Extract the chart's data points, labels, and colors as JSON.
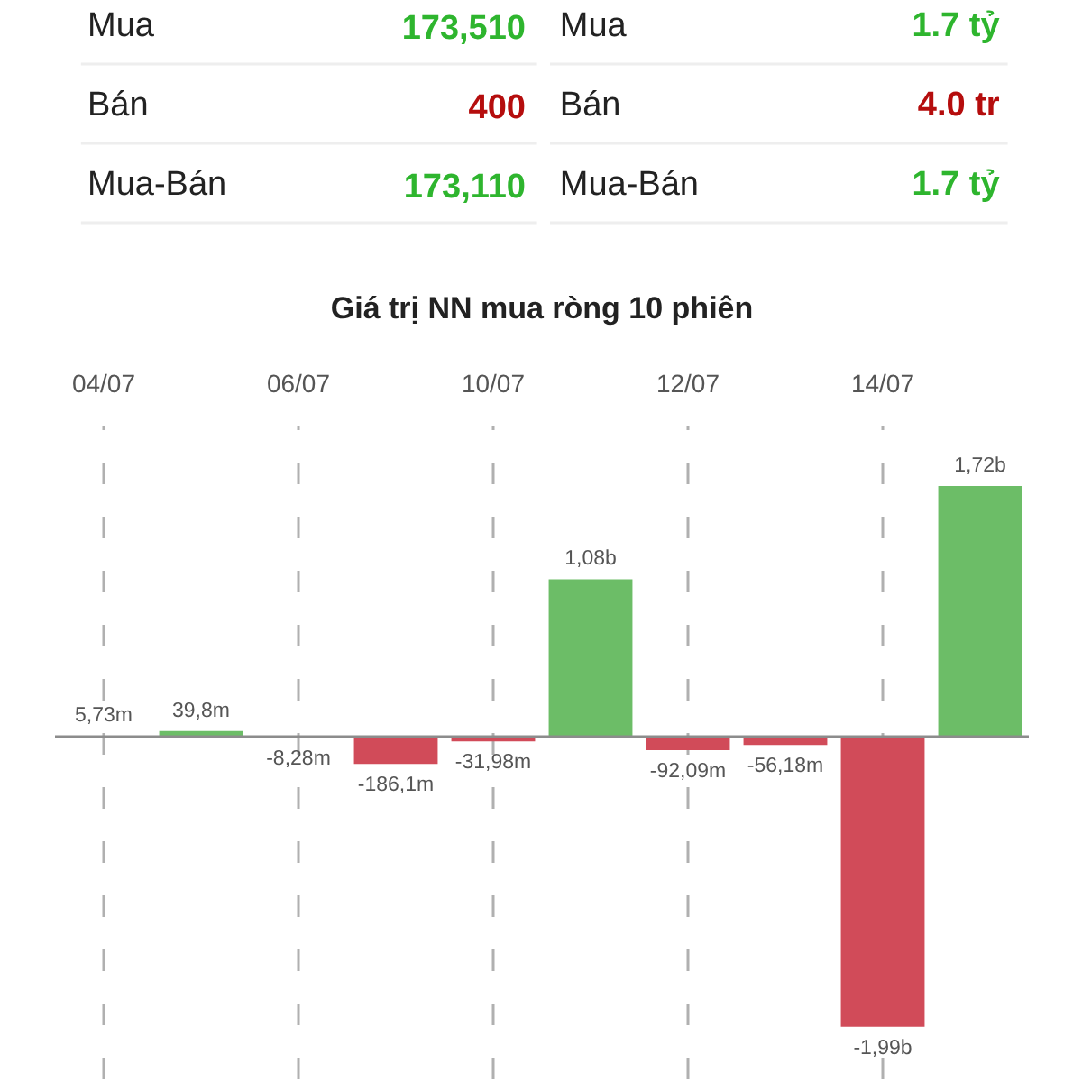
{
  "chart_data": [
    {
      "type": "other",
      "annotations": [
        "Mua",
        "173,510",
        "Mua",
        "1.7 tỷ",
        "Bán",
        "400",
        "Bán",
        "4.0 tr",
        "Mua-Bán",
        "173,110",
        "Mua-Bán",
        "1.7 tỷ"
      ],
      "colors": [
        "#222222",
        "#2eb52e",
        "#222222",
        "#2eb52e",
        "#222222",
        "#b50d0d",
        "#222222",
        "#b50d0d",
        "#222222",
        "#2eb52e",
        "#222222",
        "#2eb52e"
      ]
    },
    {
      "type": "bar",
      "title": "Giá trị NN mua ròng 10 phiên",
      "categories": [
        "04/07",
        null,
        "06/07",
        null,
        "10/07",
        null,
        "12/07",
        null,
        "14/07",
        null
      ],
      "values": [
        5730000,
        39800000,
        -8280000,
        -186100000,
        -31980000,
        1080000000,
        -92090000,
        -56180000,
        -1990000000,
        1720000000
      ],
      "colors": [
        "#6cbd67",
        "#6cbd67",
        "#d14b59",
        "#d14b59",
        "#d14b59",
        "#6cbd67",
        "#d14b59",
        "#d14b59",
        "#d14b59",
        "#6cbd67"
      ],
      "value_labels": [
        "5,73m",
        "39,8m",
        "-8,28m",
        "-186,1m",
        "-31,98m",
        "1,08b",
        "-92,09m",
        "-56,18m",
        "-1,99b",
        "1,72b"
      ],
      "grid": "x",
      "tick_labels": "x"
    }
  ]
}
